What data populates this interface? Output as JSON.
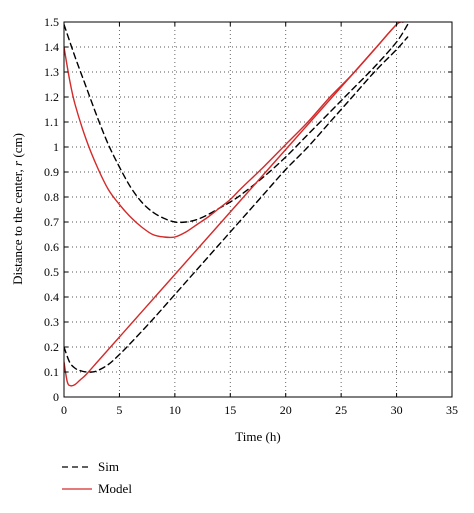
{
  "chart_data": {
    "type": "line",
    "title": "",
    "xlabel": "Time (h)",
    "ylabel_prefix": "Distance to the center, ",
    "ylabel_var": "r",
    "ylabel_suffix": " (cm)",
    "xlim": [
      0,
      35
    ],
    "ylim": [
      0,
      1.5
    ],
    "xticks": [
      0,
      5,
      10,
      15,
      20,
      25,
      30,
      35
    ],
    "yticks": [
      0,
      0.1,
      0.2,
      0.3,
      0.4,
      0.5,
      0.6,
      0.7,
      0.8,
      0.9,
      1,
      1.1,
      1.2,
      1.3,
      1.4,
      1.5
    ],
    "grid": true,
    "legend_position": "below",
    "series": [
      {
        "name": "Sim",
        "color": "#000000",
        "dash": "dashed",
        "branches": [
          {
            "x": [
              0,
              1,
              2,
              3,
              4,
              5,
              6,
              7,
              8,
              9,
              10,
              11,
              12,
              13,
              14,
              15,
              16,
              18,
              20,
              22,
              24,
              26,
              28,
              30,
              31
            ],
            "y": [
              1.49,
              1.36,
              1.24,
              1.12,
              1.01,
              0.92,
              0.84,
              0.78,
              0.74,
              0.715,
              0.7,
              0.7,
              0.71,
              0.73,
              0.755,
              0.78,
              0.81,
              0.88,
              0.96,
              1.05,
              1.14,
              1.23,
              1.32,
              1.42,
              1.49
            ]
          },
          {
            "x": [
              0,
              0.5,
              1,
              1.5,
              2,
              2.5,
              3,
              4,
              5,
              6,
              8,
              10,
              12,
              14,
              16,
              18,
              20,
              22,
              24,
              26,
              28,
              30,
              31
            ],
            "y": [
              0.2,
              0.14,
              0.115,
              0.105,
              0.1,
              0.1,
              0.105,
              0.13,
              0.17,
              0.215,
              0.31,
              0.41,
              0.51,
              0.61,
              0.71,
              0.81,
              0.91,
              1.0,
              1.1,
              1.2,
              1.3,
              1.39,
              1.44
            ]
          }
        ]
      },
      {
        "name": "Model",
        "color": "#d42a2a",
        "dash": "solid",
        "branches": [
          {
            "x": [
              0,
              0.5,
              1,
              2,
              3,
              4,
              5,
              6,
              7,
              8,
              9,
              10,
              11,
              12,
              13,
              14,
              15,
              16,
              18,
              20,
              22,
              24,
              26,
              28,
              30,
              30.6
            ],
            "y": [
              1.4,
              1.27,
              1.17,
              1.03,
              0.92,
              0.83,
              0.77,
              0.72,
              0.68,
              0.65,
              0.64,
              0.64,
              0.66,
              0.69,
              0.72,
              0.755,
              0.79,
              0.835,
              0.92,
              1.01,
              1.1,
              1.2,
              1.29,
              1.39,
              1.49,
              1.5
            ]
          },
          {
            "x": [
              0,
              0.3,
              0.6,
              1,
              1.5,
              2,
              3,
              4,
              5,
              6,
              8,
              10,
              12,
              14,
              16,
              18,
              20,
              22,
              24,
              26,
              28,
              30,
              30.6
            ],
            "y": [
              0.14,
              0.06,
              0.045,
              0.05,
              0.07,
              0.09,
              0.14,
              0.19,
              0.24,
              0.29,
              0.39,
              0.49,
              0.59,
              0.69,
              0.79,
              0.89,
              0.99,
              1.09,
              1.19,
              1.29,
              1.39,
              1.49,
              1.5
            ]
          }
        ]
      }
    ]
  }
}
